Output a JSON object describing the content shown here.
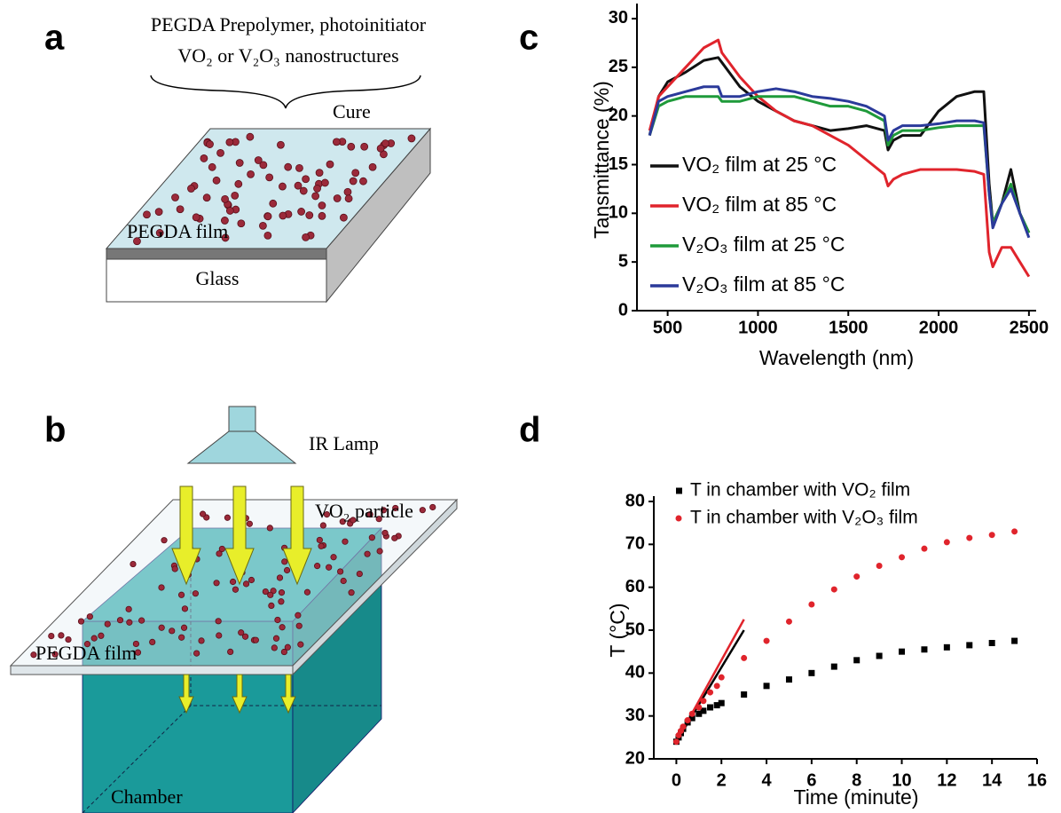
{
  "diagram_a": {
    "label": "a",
    "precursor": [
      "PEGDA Prepolymer, photoinitiator",
      "VO₂ or V₂O₃ nanostructures"
    ],
    "step": "Cure",
    "film": "PEGDA film",
    "substrate": "Glass"
  },
  "diagram_b": {
    "label": "b",
    "lamp": "IR Lamp",
    "particle": "VO₂ particle",
    "film": "PEGDA film",
    "chamber": "Chamber"
  },
  "chart_data": [
    {
      "type": "line",
      "panel_label": "c",
      "xlabel": "Wavelength (nm)",
      "ylabel": "Tansmittance (%)",
      "xlim": [
        330,
        2540
      ],
      "ylim": [
        0,
        31
      ],
      "xticks": [
        500,
        1000,
        1500,
        2000,
        2500
      ],
      "yticks": [
        0,
        5,
        10,
        15,
        20,
        25,
        30
      ],
      "legend": "lower left",
      "x": [
        400,
        450,
        500,
        600,
        700,
        780,
        800,
        900,
        1000,
        1100,
        1200,
        1300,
        1400,
        1500,
        1600,
        1700,
        1720,
        1750,
        1800,
        1900,
        2000,
        2100,
        2200,
        2250,
        2280,
        2300,
        2350,
        2400,
        2450,
        2500
      ],
      "series": [
        {
          "name": "VO₂ film at 25 °C",
          "color": "#111111",
          "values": [
            18,
            22,
            23.5,
            24.5,
            25.7,
            26,
            25.5,
            23,
            21.5,
            20.5,
            19.5,
            19,
            18.5,
            18.7,
            19,
            18.5,
            16.5,
            17.5,
            18,
            18,
            20.5,
            22,
            22.5,
            22.5,
            13,
            9,
            11,
            14.5,
            10,
            8
          ]
        },
        {
          "name": "VO₂ film at 85 °C",
          "color": "#e0242c",
          "values": [
            18.5,
            22,
            23,
            25,
            27,
            27.8,
            26.5,
            24,
            22,
            20.5,
            19.5,
            19,
            18,
            17,
            15.5,
            14,
            12.8,
            13.5,
            14,
            14.5,
            14.5,
            14.5,
            14.3,
            14,
            6,
            4.5,
            6.5,
            6.5,
            5,
            3.5
          ]
        },
        {
          "name": "V₂O₃ film at 25 °C",
          "color": "#1f9a3a",
          "values": [
            18,
            21,
            21.5,
            22,
            22,
            22,
            21.5,
            21.5,
            22,
            22,
            22,
            21.5,
            21,
            21,
            20.5,
            19.5,
            17,
            18,
            18.5,
            18.5,
            18.8,
            19,
            19,
            19,
            12,
            9,
            11,
            13,
            10,
            8
          ]
        },
        {
          "name": "V₂O₃ film at 85 °C",
          "color": "#2b3a9a",
          "values": [
            18,
            21.5,
            22,
            22.5,
            23,
            23,
            22,
            22,
            22.5,
            22.8,
            22.5,
            22,
            21.8,
            21.5,
            21,
            20,
            17.5,
            18.5,
            19,
            19,
            19.2,
            19.5,
            19.5,
            19.3,
            12,
            8.5,
            11,
            12.5,
            10,
            7.5
          ]
        }
      ]
    },
    {
      "type": "scatter",
      "panel_label": "d",
      "xlabel": "Time (minute)",
      "ylabel": "T (°C)",
      "xlim": [
        -1,
        16
      ],
      "ylim": [
        20,
        80
      ],
      "xticks": [
        0,
        2,
        4,
        6,
        8,
        10,
        12,
        14,
        16
      ],
      "yticks": [
        20,
        30,
        40,
        50,
        60,
        70,
        80
      ],
      "legend": "upper left",
      "series": [
        {
          "name": "T in chamber with VO₂ film",
          "color": "#000000",
          "marker": "square",
          "x": [
            0,
            0.1,
            0.2,
            0.3,
            0.5,
            0.7,
            1,
            1.2,
            1.5,
            1.8,
            2,
            3,
            4,
            5,
            6,
            7,
            8,
            9,
            10,
            11,
            12,
            13,
            14,
            15
          ],
          "values": [
            24,
            25,
            26,
            27,
            28.5,
            29.5,
            30.5,
            31.2,
            32,
            32.5,
            33,
            35,
            37,
            38.5,
            40,
            41.5,
            43,
            44,
            45,
            45.5,
            46,
            46.5,
            47,
            47.5
          ]
        },
        {
          "name": "T in chamber with V₂O₃ film",
          "color": "#e0242c",
          "marker": "circle",
          "x": [
            0,
            0.1,
            0.2,
            0.3,
            0.5,
            0.7,
            1,
            1.2,
            1.5,
            1.8,
            2,
            3,
            4,
            5,
            6,
            7,
            8,
            9,
            10,
            11,
            12,
            13,
            14,
            15
          ],
          "values": [
            24,
            25.5,
            26.5,
            27.5,
            29,
            30.5,
            32,
            33.5,
            35.5,
            37,
            39,
            43.5,
            47.5,
            52,
            56,
            59.5,
            62.5,
            65,
            67,
            69,
            70.5,
            71.5,
            72.2,
            73
          ]
        }
      ],
      "fit_lines": [
        {
          "color": "#000000",
          "x": [
            0,
            3
          ],
          "values": [
            24,
            50
          ]
        },
        {
          "color": "#e0242c",
          "x": [
            0,
            3
          ],
          "values": [
            24,
            52.5
          ]
        }
      ]
    }
  ]
}
